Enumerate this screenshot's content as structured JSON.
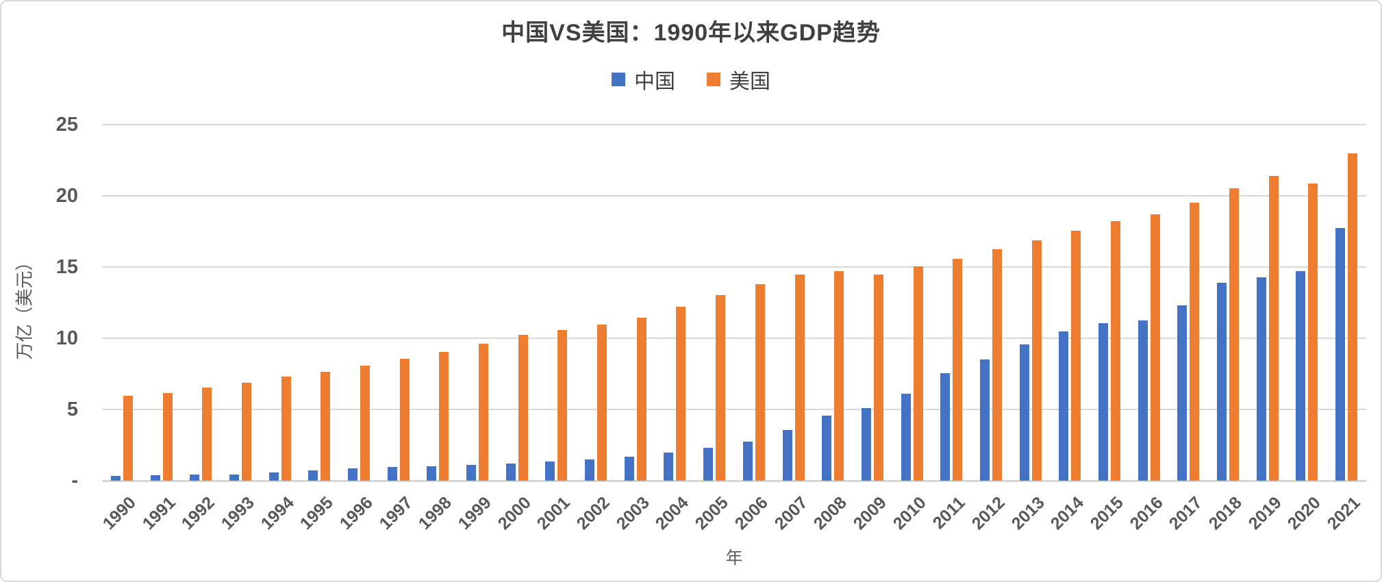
{
  "chart_data": {
    "type": "bar",
    "title": "中国VS美国：1990年以来GDP趋势",
    "xlabel": "年",
    "ylabel": "万亿（美元）",
    "ylim": [
      0,
      25
    ],
    "grid": true,
    "legend_position": "top",
    "yticks": [
      {
        "value": 0,
        "label": "-"
      },
      {
        "value": 5,
        "label": "5"
      },
      {
        "value": 10,
        "label": "10"
      },
      {
        "value": 15,
        "label": "15"
      },
      {
        "value": 20,
        "label": "20"
      },
      {
        "value": 25,
        "label": "25"
      }
    ],
    "categories": [
      "1990",
      "1991",
      "1992",
      "1993",
      "1994",
      "1995",
      "1996",
      "1997",
      "1998",
      "1999",
      "2000",
      "2001",
      "2002",
      "2003",
      "2004",
      "2005",
      "2006",
      "2007",
      "2008",
      "2009",
      "2010",
      "2011",
      "2012",
      "2013",
      "2014",
      "2015",
      "2016",
      "2017",
      "2018",
      "2019",
      "2020",
      "2021"
    ],
    "series": [
      {
        "name": "中国",
        "color": "#4472C4",
        "values": [
          0.36,
          0.38,
          0.43,
          0.44,
          0.56,
          0.73,
          0.86,
          0.96,
          1.03,
          1.09,
          1.21,
          1.34,
          1.47,
          1.66,
          1.96,
          2.29,
          2.75,
          3.55,
          4.59,
          5.1,
          6.09,
          7.55,
          8.53,
          9.57,
          10.48,
          11.06,
          11.23,
          12.31,
          13.89,
          14.28,
          14.69,
          17.73
        ]
      },
      {
        "name": "美国",
        "color": "#ED7D31",
        "values": [
          5.96,
          6.16,
          6.52,
          6.86,
          7.29,
          7.64,
          8.07,
          8.58,
          9.06,
          9.63,
          10.25,
          10.58,
          10.94,
          11.46,
          12.21,
          13.04,
          13.82,
          14.45,
          14.71,
          14.45,
          15.05,
          15.6,
          16.25,
          16.88,
          17.55,
          18.21,
          18.71,
          19.52,
          20.53,
          21.38,
          20.89,
          22.99
        ]
      }
    ],
    "colors": {
      "gridline": "#d9d9d9",
      "axis_text": "#595959",
      "title_text": "#404040"
    }
  }
}
